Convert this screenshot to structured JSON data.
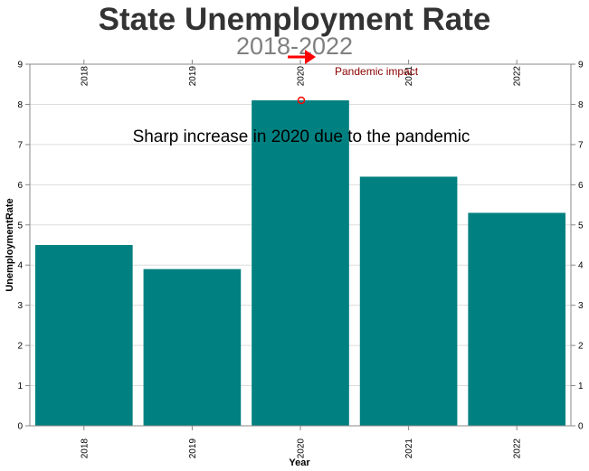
{
  "chart_data": {
    "type": "bar",
    "title": "State Unemployment Rate",
    "subtitle": "2018-2022",
    "xlabel": "Year",
    "ylabel": "UnemploymentRate",
    "categories": [
      "2018",
      "2019",
      "2020",
      "2021",
      "2022"
    ],
    "values": [
      4.5,
      3.9,
      8.1,
      6.2,
      5.3
    ],
    "ylim": [
      0,
      9
    ],
    "yticks": [
      "0",
      "1",
      "2",
      "3",
      "4",
      "5",
      "6",
      "7",
      "8",
      "9"
    ],
    "grid": true,
    "bar_color": "#008080",
    "annotations": [
      {
        "text": "Sharp increase in 2020 due to the pandemic",
        "color": "#000000"
      },
      {
        "text": "Pandemic impact",
        "color": "#8b0000",
        "arrow_color": "#ff0000",
        "points_to": "2020"
      }
    ]
  }
}
